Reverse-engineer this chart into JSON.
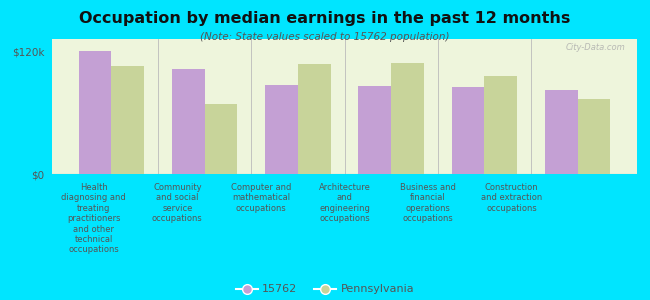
{
  "title": "Occupation by median earnings in the past 12 months",
  "subtitle": "(Note: State values scaled to 15762 population)",
  "categories": [
    "Health\ndiagnosing and\ntreating\npractitioners\nand other\ntechnical\noccupations",
    "Community\nand social\nservice\noccupations",
    "Computer and\nmathematical\noccupations",
    "Architecture\nand\nengineering\noccupations",
    "Business and\nfinancial\noperations\noccupations",
    "Construction\nand extraction\noccupations"
  ],
  "values_15762": [
    120000,
    103000,
    87000,
    86000,
    85000,
    82000
  ],
  "values_pennsylvania": [
    106000,
    68000,
    108000,
    109000,
    96000,
    73000
  ],
  "color_15762": "#c4a0d4",
  "color_pennsylvania": "#c8d49a",
  "bar_width": 0.35,
  "ylim": [
    0,
    132000
  ],
  "yticks": [
    0,
    120000
  ],
  "ytick_labels": [
    "$0",
    "$120k"
  ],
  "plot_bg": "#eef5dc",
  "outer_bg": "#00e5ff",
  "legend_labels": [
    "15762",
    "Pennsylvania"
  ],
  "watermark": "City-Data.com",
  "divider_color": "#bbbbbb",
  "baseline_color": "#999999"
}
